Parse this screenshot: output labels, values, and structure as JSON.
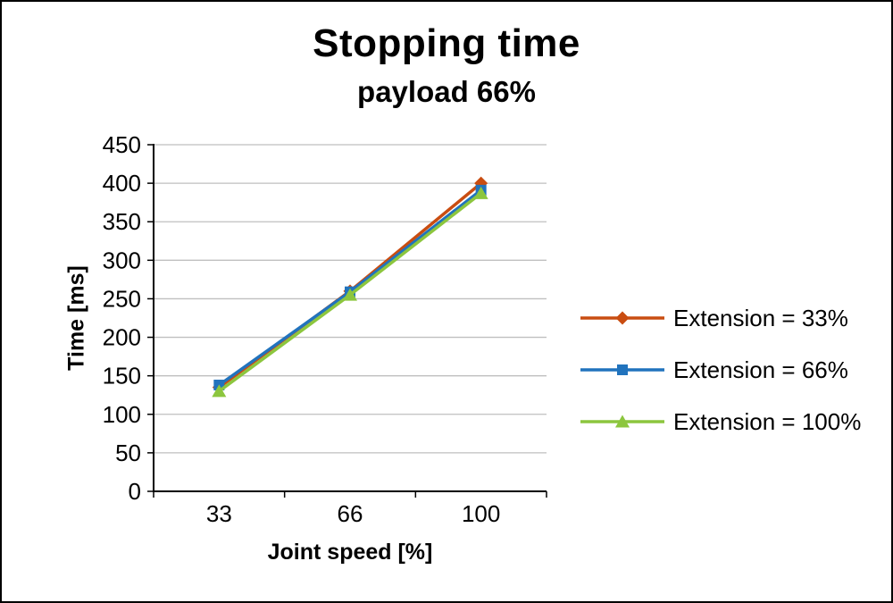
{
  "chart_data": {
    "type": "line",
    "title": "Stopping time",
    "subtitle": "payload 66%",
    "categories": [
      "33",
      "66",
      "100"
    ],
    "xlabel": "Joint speed [%]",
    "ylabel": "Time [ms]",
    "ylim": [
      0,
      450
    ],
    "ytick_step": 50,
    "grid": true,
    "legend_position": "right",
    "series": [
      {
        "name": "Extension = 33%",
        "color": "#c94d11",
        "marker": "diamond",
        "values": [
          135,
          260,
          400
        ]
      },
      {
        "name": "Extension = 66%",
        "color": "#2173bd",
        "marker": "square",
        "values": [
          138,
          259,
          391
        ]
      },
      {
        "name": "Extension = 100%",
        "color": "#8cc63e",
        "marker": "triangle",
        "values": [
          130,
          255,
          387
        ]
      }
    ],
    "colors": {
      "gridline": "#bfbfbf",
      "axis": "#000000",
      "text": "#000000"
    }
  }
}
